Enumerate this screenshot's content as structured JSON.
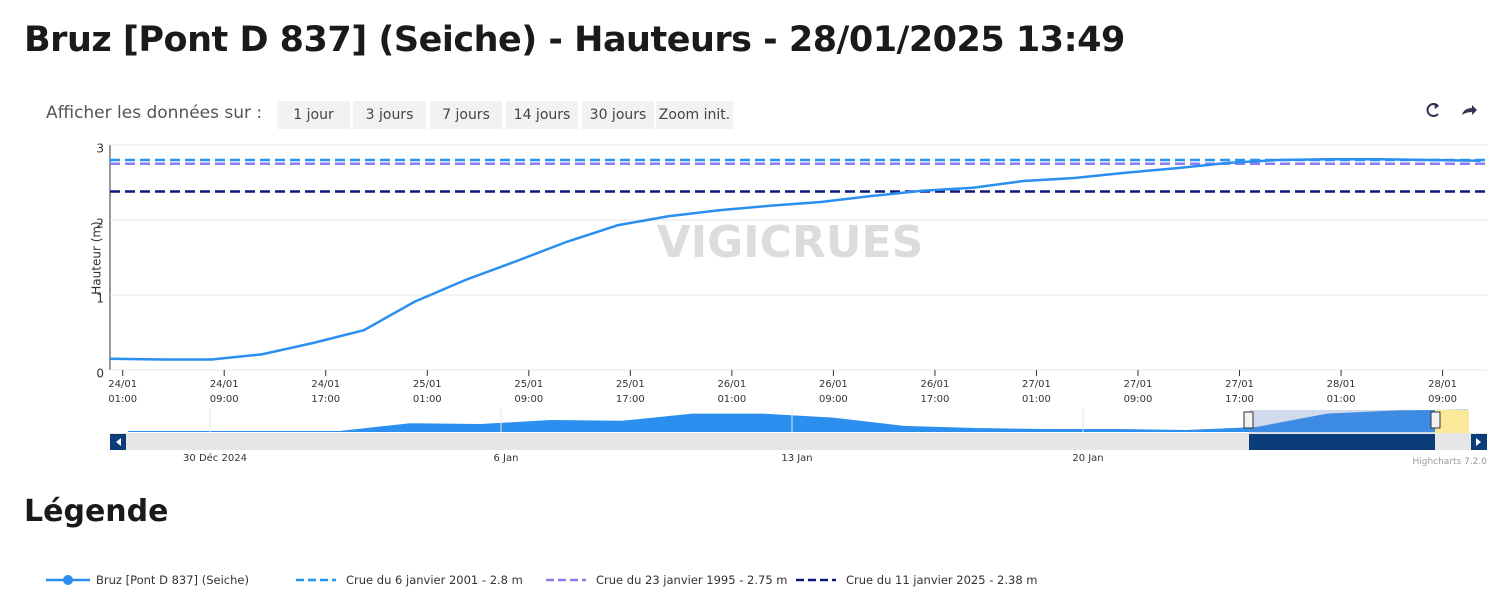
{
  "header": {
    "title": "Bruz [Pont D 837] (Seiche) - Hauteurs - 28/01/2025 13:49"
  },
  "toolbar": {
    "label": "Afficher les données sur :",
    "buttons": [
      "1 jour",
      "3 jours",
      "7 jours",
      "14 jours",
      "30 jours",
      "Zoom init."
    ]
  },
  "chart_data": {
    "type": "line",
    "watermark": "VIGICRUES",
    "y_label": "Hauteur (m)",
    "ylim": [
      0,
      3
    ],
    "yticks": [
      0,
      1,
      2,
      3
    ],
    "grid": true,
    "xlim": [
      "24/01 00:00",
      "28/01 12:30"
    ],
    "xticks": [
      "24/01 01:00",
      "24/01 09:00",
      "24/01 17:00",
      "25/01 01:00",
      "25/01 09:00",
      "25/01 17:00",
      "26/01 01:00",
      "26/01 09:00",
      "26/01 17:00",
      "27/01 01:00",
      "27/01 09:00",
      "27/01 17:00",
      "28/01 01:00",
      "28/01 09:00"
    ],
    "x": [
      "24/01 00:00",
      "24/01 04:00",
      "24/01 08:00",
      "24/01 12:00",
      "24/01 16:00",
      "24/01 20:00",
      "25/01 00:00",
      "25/01 04:00",
      "25/01 08:00",
      "25/01 12:00",
      "25/01 16:00",
      "25/01 20:00",
      "26/01 00:00",
      "26/01 04:00",
      "26/01 08:00",
      "26/01 12:00",
      "26/01 16:00",
      "26/01 20:00",
      "27/01 00:00",
      "27/01 04:00",
      "27/01 08:00",
      "27/01 12:00",
      "27/01 16:00",
      "27/01 20:00",
      "28/01 00:00",
      "28/01 04:00",
      "28/01 08:00",
      "28/01 12:00"
    ],
    "series": [
      {
        "name": "Bruz [Pont D 837] (Seiche)",
        "color": "#2b8ff0",
        "values": [
          0.15,
          0.14,
          0.14,
          0.21,
          0.36,
          0.53,
          0.91,
          1.2,
          1.45,
          1.71,
          1.93,
          2.05,
          2.13,
          2.19,
          2.24,
          2.32,
          2.39,
          2.43,
          2.52,
          2.56,
          2.63,
          2.69,
          2.76,
          2.8,
          2.81,
          2.81,
          2.8,
          2.79
        ]
      }
    ],
    "plot_lines": [
      {
        "name": "Crue du 6 janvier 2001 - 2.8 m",
        "color": "#2196f3",
        "value": 2.8
      },
      {
        "name": "Crue du 23 janvier 1995 - 2.75 m",
        "color": "#8c7cf0",
        "value": 2.75
      },
      {
        "name": "Crue du 11 janvier 2025 - 2.38 m",
        "color": "#0d1a7a",
        "value": 2.38
      }
    ],
    "navigator": {
      "values": [
        0.13,
        0.13,
        0.13,
        0.13,
        1.1,
        1.0,
        1.5,
        1.4,
        2.3,
        2.3,
        1.8,
        0.76,
        0.5,
        0.38,
        0.38,
        0.25,
        0.63,
        2.3,
        2.7,
        2.8
      ],
      "tick_labels": [
        "30 Déc 2024",
        "6 Jan",
        "13 Jan",
        "20 Jan"
      ]
    },
    "credits": "Highcharts 7.2.0"
  },
  "legend_section": {
    "title": "Légende"
  }
}
